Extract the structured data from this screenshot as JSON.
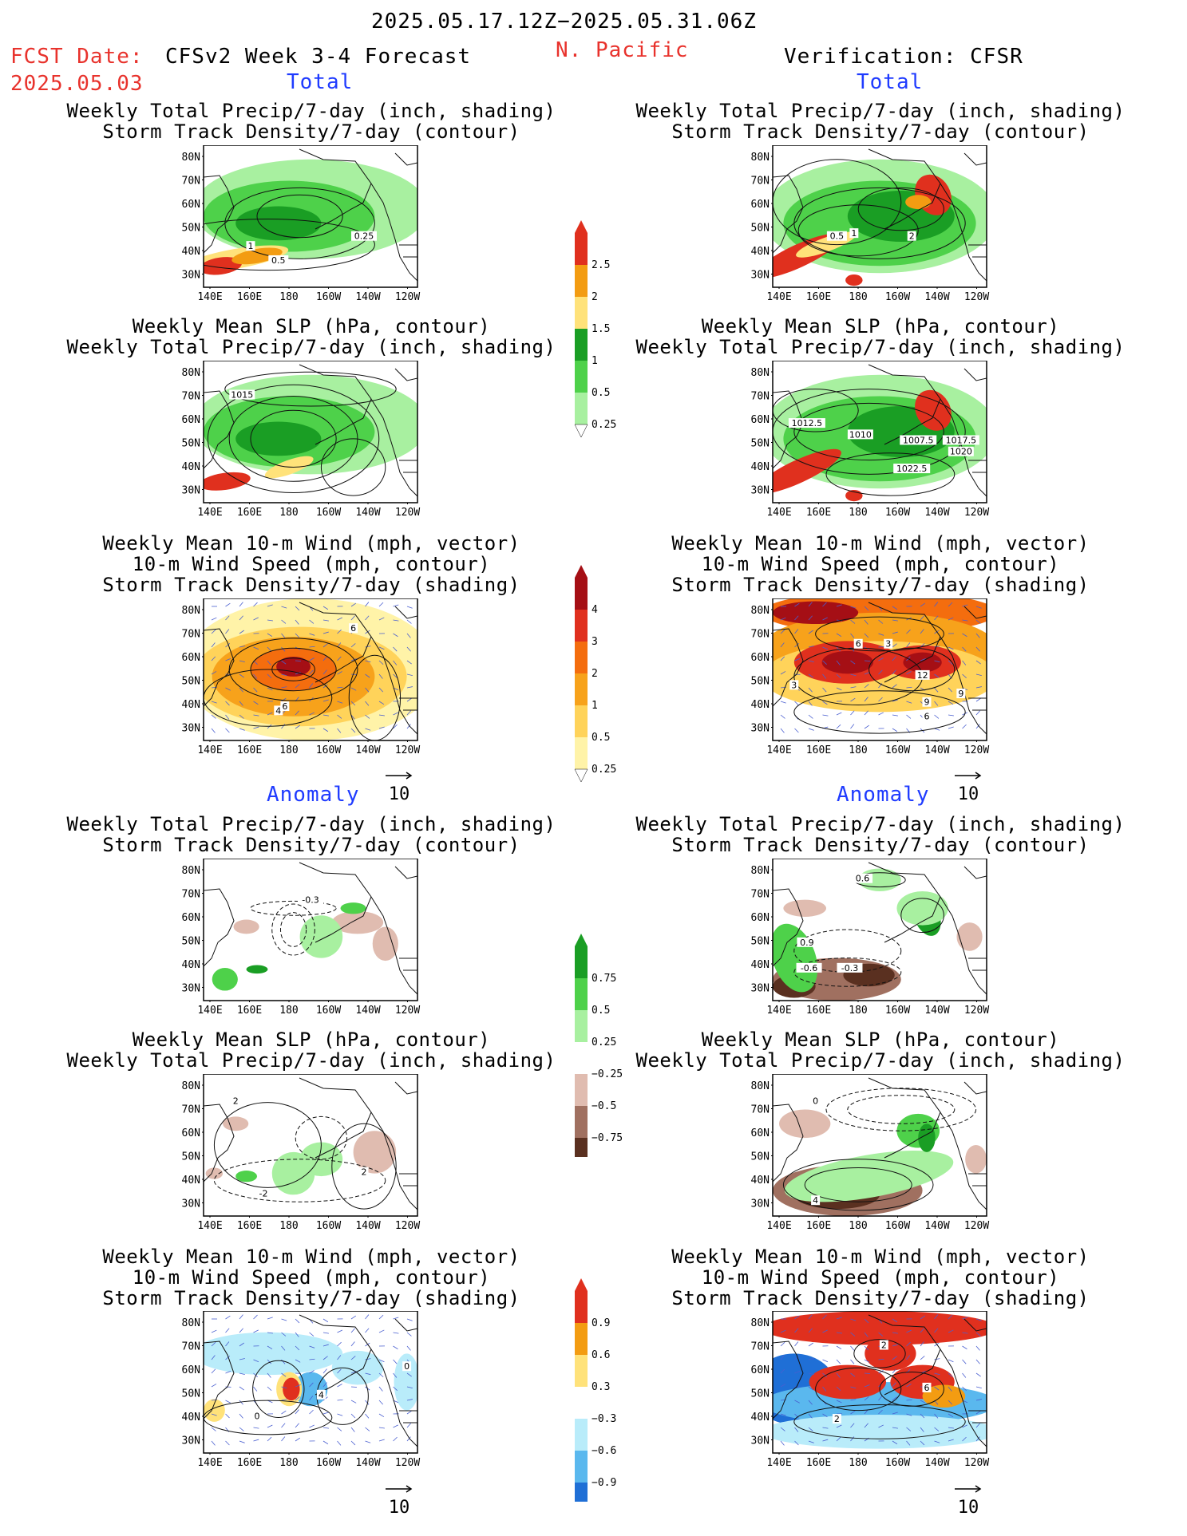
{
  "header": {
    "period": "2025.05.17.12Z−2025.05.31.06Z",
    "fcst_label": "FCST Date:",
    "fcst_date": "2025.05.03",
    "product": "CFSv2 Week 3-4 Forecast",
    "region": "N. Pacific",
    "verification": "Verification: CFSR"
  },
  "sections": {
    "total": "Total",
    "anomaly": "Anomaly"
  },
  "titles": {
    "precip_storm": "Weekly Total Precip/7-day (inch, shading)\nStorm Track Density/7-day (contour)",
    "slp_precip": "Weekly Mean SLP (hPa, contour)\nWeekly Total Precip/7-day (inch, shading)",
    "wind_storm": "Weekly Mean 10-m Wind (mph, vector)\n10-m Wind Speed (mph, contour)\nStorm Track Density/7-day (shading)"
  },
  "axes": {
    "lat_labels": [
      "80N",
      "70N",
      "60N",
      "50N",
      "40N",
      "30N"
    ],
    "lon_labels": [
      "140E",
      "160E",
      "180",
      "160W",
      "140W",
      "120W"
    ]
  },
  "vector_ref": "10",
  "legends": {
    "total_precip": {
      "labels": [
        "2.5",
        "2",
        "1.5",
        "1",
        "0.5",
        "0.25"
      ],
      "colors": [
        "#e0301e",
        "#f39c12",
        "#ffe27a",
        "#1a9e24",
        "#4ed14a",
        "#a8f0a0"
      ]
    },
    "total_storm": {
      "labels": [
        "4",
        "3",
        "2",
        "1",
        "0.5",
        "0.25"
      ],
      "colors": [
        "#a50f15",
        "#e0301e",
        "#f46d0e",
        "#f7a21b",
        "#ffd35a",
        "#fff3a8"
      ]
    },
    "anom_precip": {
      "labels": [
        "0.75",
        "0.5",
        "0.25",
        "−0.25",
        "−0.5",
        "−0.75"
      ],
      "colors": [
        "#1a9e24",
        "#4ed14a",
        "#a8f0a0",
        "#ffffff",
        "#e0bcb0",
        "#a07060",
        "#5a3020"
      ]
    },
    "anom_storm": {
      "labels": [
        "0.9",
        "0.6",
        "0.3",
        "−0.3",
        "−0.6",
        "−0.9"
      ],
      "colors": [
        "#e0301e",
        "#f39c12",
        "#ffe27a",
        "#ffffff",
        "#b9ecfa",
        "#5ab8ee",
        "#1f6fd6"
      ]
    }
  },
  "contour_labels": {
    "fc_total_precip": [
      "1",
      "0.5",
      "0.25"
    ],
    "vf_total_precip": [
      "0.5",
      "1",
      "2"
    ],
    "fc_total_slp": [
      "1015"
    ],
    "vf_total_slp": [
      "1012.5",
      "1010",
      "1007.5",
      "1017.5",
      "1020",
      "1022.5"
    ],
    "fc_total_wind": [
      "6",
      "4",
      "6"
    ],
    "vf_total_wind": [
      "6",
      "3",
      "12",
      "9",
      "9",
      "6",
      "3"
    ],
    "fc_anom_precip": [
      "-0.3"
    ],
    "vf_anom_precip": [
      "0.6",
      "0.9",
      "-0.6",
      "-0.3"
    ],
    "fc_anom_slp": [
      "2",
      "2",
      "-2"
    ],
    "vf_anom_slp": [
      "0",
      "4"
    ],
    "fc_anom_wind": [
      "4",
      "0",
      "0"
    ],
    "vf_anom_wind": [
      "2",
      "6",
      "2"
    ]
  }
}
